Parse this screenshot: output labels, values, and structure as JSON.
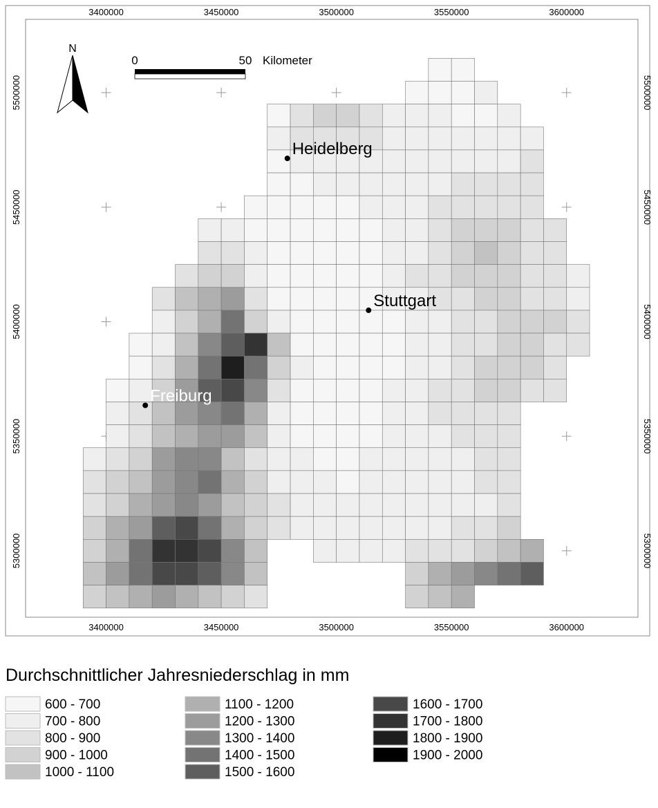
{
  "map": {
    "xlim": [
      3365000,
      3631000
    ],
    "ylim": [
      5271000,
      5532000
    ],
    "xticks": [
      3400000,
      3450000,
      3500000,
      3550000,
      3600000
    ],
    "yticks": [
      5300000,
      5350000,
      5400000,
      5450000,
      5500000
    ],
    "grid_x0": 3390000,
    "grid_y0": 5515000,
    "cell": 10000,
    "rows": [
      "...............00.......",
      "..............0001......",
      "........02332111001.....",
      "........122221111111....",
      "........011111111112....",
      "........001111112222....",
      ".......0000011122222....",
      ".....1100000011233322...",
      ".....2210000011234322...",
      "....233100000122333221..",
      "...2456200000112233221..",
      "...1358310000011223332..",
      "..01479b40000011223322..",
      "..0258c83100001123332...",
      ".01369a72000011223322...",
      ".124678510000112222.....",
      ".124566410000111222.....",
      "1236774211001111122.....",
      "2346785311101111122.....",
      "2356764321111111112.....",
      "3569a85321111111223.....",
      "358bba74..1111222345....",
      "468aa974......356789....",
      "34565432......345......."
    ],
    "north": "N",
    "scale_bar": {
      "start": "0",
      "end": "50",
      "unit": "Kilometer"
    },
    "cities": [
      {
        "name": "Heidelberg",
        "x": 3478700,
        "y": 5471300,
        "label_color": "#000000"
      },
      {
        "name": "Stuttgart",
        "x": 3514000,
        "y": 5405000,
        "label_color": "#000000"
      },
      {
        "name": "Freiburg",
        "x": 3417000,
        "y": 5363500,
        "label_color": "#ffffff"
      }
    ]
  },
  "legend": {
    "title": "Durchschnittlicher Jahresniederschlag in mm",
    "classes": [
      {
        "label": "600 - 700",
        "color": "#f6f6f6"
      },
      {
        "label": "700 - 800",
        "color": "#efefef"
      },
      {
        "label": "800 - 900",
        "color": "#e2e2e2"
      },
      {
        "label": "900 - 1000",
        "color": "#d2d2d2"
      },
      {
        "label": "1000 - 1100",
        "color": "#c2c2c2"
      },
      {
        "label": "1100 - 1200",
        "color": "#b0b0b0"
      },
      {
        "label": "1200 - 1300",
        "color": "#9c9c9c"
      },
      {
        "label": "1300 - 1400",
        "color": "#888888"
      },
      {
        "label": "1400 - 1500",
        "color": "#737373"
      },
      {
        "label": "1500 - 1600",
        "color": "#5e5e5e"
      },
      {
        "label": "1600 - 1700",
        "color": "#484848"
      },
      {
        "label": "1700 - 1800",
        "color": "#333333"
      },
      {
        "label": "1800 - 1900",
        "color": "#1e1e1e"
      },
      {
        "label": "1900 - 2000",
        "color": "#000000"
      }
    ]
  }
}
